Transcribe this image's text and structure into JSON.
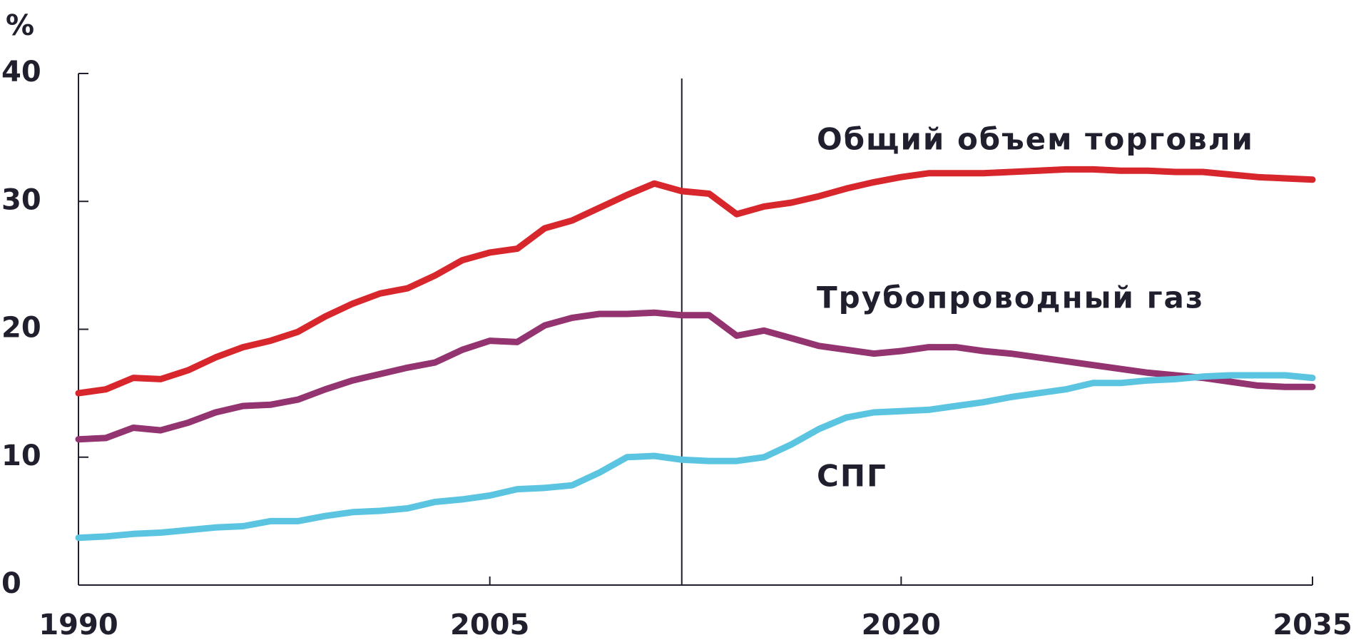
{
  "chart_data": {
    "type": "line",
    "y_label": "%",
    "x": [
      1990,
      1991,
      1992,
      1993,
      1994,
      1995,
      1996,
      1997,
      1998,
      1999,
      2000,
      2001,
      2002,
      2003,
      2004,
      2005,
      2006,
      2007,
      2008,
      2009,
      2010,
      2011,
      2012,
      2013,
      2014,
      2015,
      2016,
      2017,
      2018,
      2019,
      2020,
      2021,
      2022,
      2023,
      2024,
      2025,
      2026,
      2027,
      2028,
      2029,
      2030,
      2031,
      2032,
      2033,
      2034,
      2035
    ],
    "series": [
      {
        "name": "Общий объем торговли",
        "color": "#d7262c",
        "values": [
          15,
          15.3,
          16.2,
          16.1,
          16.8,
          17.8,
          18.6,
          19.1,
          19.8,
          21,
          22,
          22.8,
          23.2,
          24.2,
          25.4,
          26,
          26.3,
          27.9,
          28.5,
          29.5,
          30.5,
          31.4,
          30.8,
          30.6,
          29,
          29.6,
          29.9,
          30.4,
          31,
          31.5,
          31.9,
          32.2,
          32.2,
          32.2,
          32.3,
          32.4,
          32.5,
          32.5,
          32.4,
          32.4,
          32.3,
          32.3,
          32.1,
          31.9,
          31.8,
          31.7
        ]
      },
      {
        "name": "Трубопроводный газ",
        "color": "#93336f",
        "values": [
          11.4,
          11.5,
          12.3,
          12.1,
          12.7,
          13.5,
          14,
          14.1,
          14.5,
          15.3,
          16,
          16.5,
          17,
          17.4,
          18.4,
          19.1,
          19,
          20.3,
          20.9,
          21.2,
          21.2,
          21.3,
          21.1,
          21.1,
          19.5,
          19.9,
          19.3,
          18.7,
          18.4,
          18.1,
          18.3,
          18.6,
          18.6,
          18.3,
          18.1,
          17.8,
          17.5,
          17.2,
          16.9,
          16.6,
          16.4,
          16.2,
          15.9,
          15.6,
          15.5,
          15.5
        ]
      },
      {
        "name": "СПГ",
        "color": "#5bc5e1",
        "values": [
          3.7,
          3.8,
          4,
          4.1,
          4.3,
          4.5,
          4.6,
          5,
          5,
          5.4,
          5.7,
          5.8,
          6,
          6.5,
          6.7,
          7,
          7.5,
          7.6,
          7.8,
          8.8,
          10,
          10.1,
          9.8,
          9.7,
          9.7,
          10,
          11,
          12.2,
          13.1,
          13.5,
          13.6,
          13.7,
          14,
          14.3,
          14.7,
          15,
          15.3,
          15.8,
          15.8,
          16,
          16.1,
          16.3,
          16.4,
          16.4,
          16.4,
          16.2
        ]
      }
    ],
    "xlim": [
      1990,
      2035
    ],
    "xticks": [
      1990,
      2005,
      2020,
      2035
    ],
    "ylim": [
      0,
      40
    ],
    "yticks": [
      0,
      10,
      20,
      30,
      40
    ],
    "vline_x": 2012
  }
}
